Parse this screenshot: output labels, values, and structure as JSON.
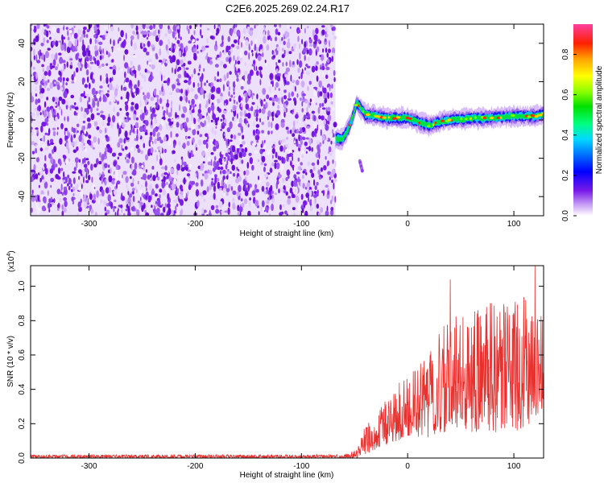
{
  "title": "C2E6.2025.269.02.24.R17",
  "chart_data": [
    {
      "type": "heatmap",
      "xlabel": "Height of straight line (km)",
      "ylabel": "Frequency (Hz)",
      "xlim": [
        -355,
        128
      ],
      "ylim": [
        -50,
        50
      ],
      "x_ticks": [
        -300,
        -200,
        -100,
        0,
        100
      ],
      "y_ticks": [
        -40,
        -20,
        0,
        20,
        40
      ],
      "colorbar": {
        "label": "Normalized spectral amplitude",
        "range": [
          0,
          0.95
        ],
        "ticks": [
          0.0,
          0.2,
          0.4,
          0.6,
          0.8
        ]
      },
      "noise_region_x": [
        -355,
        -68
      ],
      "signal_track": [
        {
          "x": -68,
          "y": -10
        },
        {
          "x": -62,
          "y": -10
        },
        {
          "x": -57,
          "y": -6
        },
        {
          "x": -52,
          "y": 1
        },
        {
          "x": -48,
          "y": 9
        },
        {
          "x": -44,
          "y": 6
        },
        {
          "x": -40,
          "y": 3
        },
        {
          "x": -30,
          "y": 2
        },
        {
          "x": -20,
          "y": 1
        },
        {
          "x": -10,
          "y": 1
        },
        {
          "x": 0,
          "y": 1
        },
        {
          "x": 5,
          "y": 0
        },
        {
          "x": 10,
          "y": -1
        },
        {
          "x": 15,
          "y": -2
        },
        {
          "x": 20,
          "y": -3
        },
        {
          "x": 25,
          "y": -2
        },
        {
          "x": 30,
          "y": -1
        },
        {
          "x": 40,
          "y": 0
        },
        {
          "x": 60,
          "y": 1
        },
        {
          "x": 80,
          "y": 1
        },
        {
          "x": 100,
          "y": 2
        },
        {
          "x": 120,
          "y": 2
        },
        {
          "x": 128,
          "y": 3
        }
      ],
      "secondary_feature": {
        "x": -45,
        "y": -24
      }
    },
    {
      "type": "line",
      "xlabel": "Height of straight line (km)",
      "ylabel": "SNR (10 * v/v)",
      "y_scale_label": "(x10",
      "y_scale_exponent": "4",
      "y_scale_close": ")",
      "xlim": [
        -355,
        128
      ],
      "ylim": [
        0,
        1.12
      ],
      "x_ticks": [
        -300,
        -200,
        -100,
        0,
        100
      ],
      "y_ticks": [
        0.0,
        0.2,
        0.4,
        0.6,
        0.8,
        1.0
      ],
      "envelope": [
        {
          "x": -355,
          "low": 0.0,
          "high": 0.02
        },
        {
          "x": -60,
          "low": 0.0,
          "high": 0.02
        },
        {
          "x": -48,
          "low": 0.0,
          "high": 0.05
        },
        {
          "x": -40,
          "low": 0.02,
          "high": 0.2
        },
        {
          "x": -30,
          "low": 0.05,
          "high": 0.25
        },
        {
          "x": -20,
          "low": 0.08,
          "high": 0.35
        },
        {
          "x": -10,
          "low": 0.1,
          "high": 0.45
        },
        {
          "x": 0,
          "low": 0.12,
          "high": 0.5
        },
        {
          "x": 10,
          "low": 0.12,
          "high": 0.55
        },
        {
          "x": 20,
          "low": 0.12,
          "high": 0.6
        },
        {
          "x": 30,
          "low": 0.15,
          "high": 0.75
        },
        {
          "x": 50,
          "low": 0.15,
          "high": 0.85
        },
        {
          "x": 75,
          "low": 0.15,
          "high": 0.9
        },
        {
          "x": 100,
          "low": 0.15,
          "high": 0.92
        },
        {
          "x": 115,
          "low": 0.2,
          "high": 0.95
        },
        {
          "x": 128,
          "low": 0.3,
          "high": 0.8
        }
      ],
      "peaks": [
        {
          "x": 40,
          "y": 1.04
        },
        {
          "x": 120,
          "y": 1.12
        },
        {
          "x": 128,
          "y": 0.8
        }
      ],
      "color": "#e8302c"
    }
  ]
}
